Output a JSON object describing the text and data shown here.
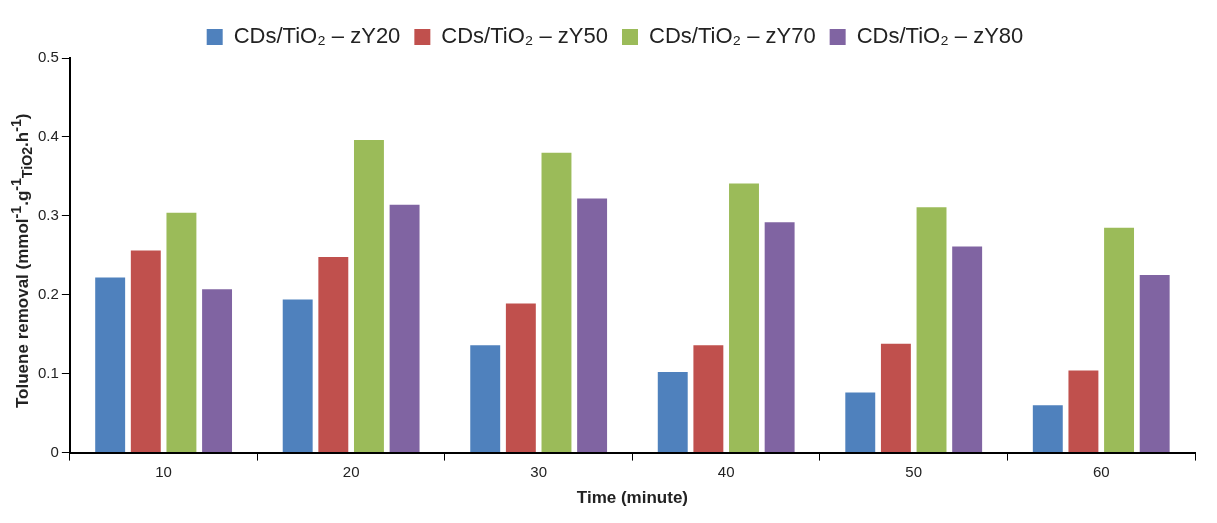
{
  "chart_data": {
    "type": "bar",
    "xlabel": "Time (minute)",
    "ylabel": "Toluene removal (mmol$^{-1}$.g$^{-1}$$_{TiO2}$.h$^{-1}$)",
    "categories": [
      "10",
      "20",
      "30",
      "40",
      "50",
      "60"
    ],
    "series": [
      {
        "name": "CDs/TiO₂ – zY20",
        "color": "#4f81bd",
        "values": [
          0.222,
          0.194,
          0.136,
          0.102,
          0.076,
          0.06
        ]
      },
      {
        "name": "CDs/TiO₂ – zY50",
        "color": "#c0504d",
        "values": [
          0.256,
          0.248,
          0.189,
          0.136,
          0.138,
          0.104
        ]
      },
      {
        "name": "CDs/TiO₂ – zY70",
        "color": "#9bbb59",
        "values": [
          0.304,
          0.396,
          0.38,
          0.341,
          0.311,
          0.285
        ]
      },
      {
        "name": "CDs/TiO₂ – zY80",
        "color": "#8064a2",
        "values": [
          0.207,
          0.314,
          0.322,
          0.292,
          0.261,
          0.225
        ]
      }
    ],
    "ylim": [
      0,
      0.5
    ],
    "yticks": [
      0,
      0.1,
      0.2,
      0.3,
      0.4,
      0.5
    ],
    "grid": false,
    "legend": "top"
  }
}
